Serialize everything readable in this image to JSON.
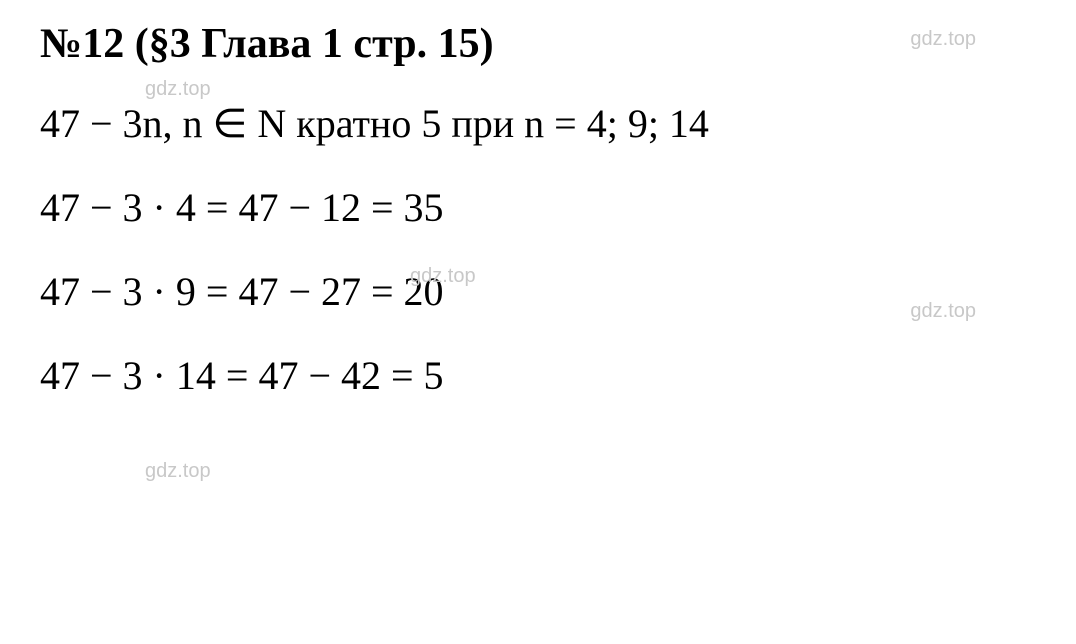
{
  "title": "№12 (§3 Глава 1  стр. 15)",
  "lines": {
    "line1": "47 − 3n, n ∈ N кратно 5 при n = 4; 9; 14",
    "line2": "47 − 3 · 4 = 47 − 12 = 35",
    "line3": "47 − 3 · 9 = 47 − 27 = 20",
    "line4": "47 − 3 · 14 = 47 − 42 = 5"
  },
  "watermark": "gdz.top",
  "colors": {
    "text": "#000000",
    "background": "#ffffff",
    "watermark": "#c8c8c8"
  },
  "typography": {
    "title_fontsize": 42,
    "title_fontweight": "bold",
    "body_fontsize": 40,
    "watermark_fontsize": 20,
    "font_family": "Times New Roman"
  }
}
